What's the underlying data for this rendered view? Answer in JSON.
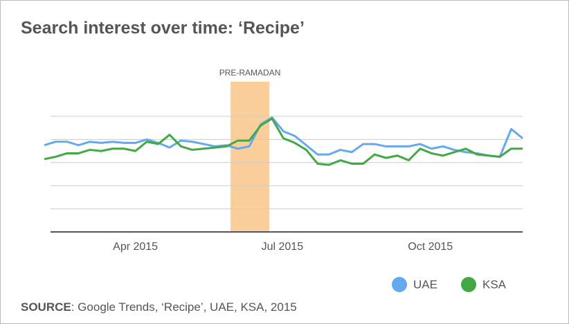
{
  "chart_data": {
    "type": "line",
    "title": "Search interest over time: ‘Recipe’",
    "x": [
      0,
      1,
      2,
      3,
      4,
      5,
      6,
      7,
      8,
      9,
      10,
      11,
      12,
      13,
      14,
      15,
      16,
      17,
      18,
      19,
      20,
      21,
      22,
      23,
      24,
      25,
      26,
      27,
      28,
      29,
      30,
      31,
      32,
      33,
      34,
      35,
      36,
      37,
      38,
      39,
      40,
      41,
      42
    ],
    "series": [
      {
        "name": "UAE",
        "color": "#64a8ee",
        "values": [
          75,
          78,
          78,
          75,
          78,
          77,
          78,
          77,
          77,
          80,
          77,
          73,
          79,
          78,
          76,
          74,
          75,
          72,
          74,
          93,
          99,
          87,
          83,
          75,
          67,
          67,
          71,
          69,
          76,
          76,
          74,
          74,
          74,
          76,
          72,
          74,
          71,
          69,
          68,
          66,
          65,
          89,
          81
        ]
      },
      {
        "name": "KSA",
        "color": "#43a843",
        "values": [
          63,
          65,
          68,
          68,
          71,
          70,
          72,
          72,
          70,
          78,
          76,
          84,
          74,
          71,
          72,
          73,
          74,
          79,
          79,
          92,
          98,
          81,
          77,
          71,
          59,
          58,
          62,
          59,
          59,
          67,
          64,
          66,
          62,
          72,
          68,
          66,
          69,
          72,
          67,
          66,
          65,
          72,
          72
        ]
      }
    ],
    "xlim": [
      0,
      42
    ],
    "xticks": [
      {
        "value": 8,
        "label": "Apr 2015"
      },
      {
        "value": 20.9,
        "label": "Jul 2015"
      },
      {
        "value": 33.9,
        "label": "Oct 2015"
      }
    ],
    "ylim": [
      0,
      100
    ],
    "yticks": [
      0,
      20,
      40,
      60,
      80,
      100
    ],
    "grid": true,
    "legend": "bottom-right",
    "annotation": {
      "text": "PRE-RAMADAN",
      "x": [
        16.35,
        19.76
      ],
      "color": "#fbcf9b"
    },
    "source_label": "SOURCE",
    "source_text": ": Google Trends, ‘Recipe’, UAE, KSA, 2015"
  }
}
